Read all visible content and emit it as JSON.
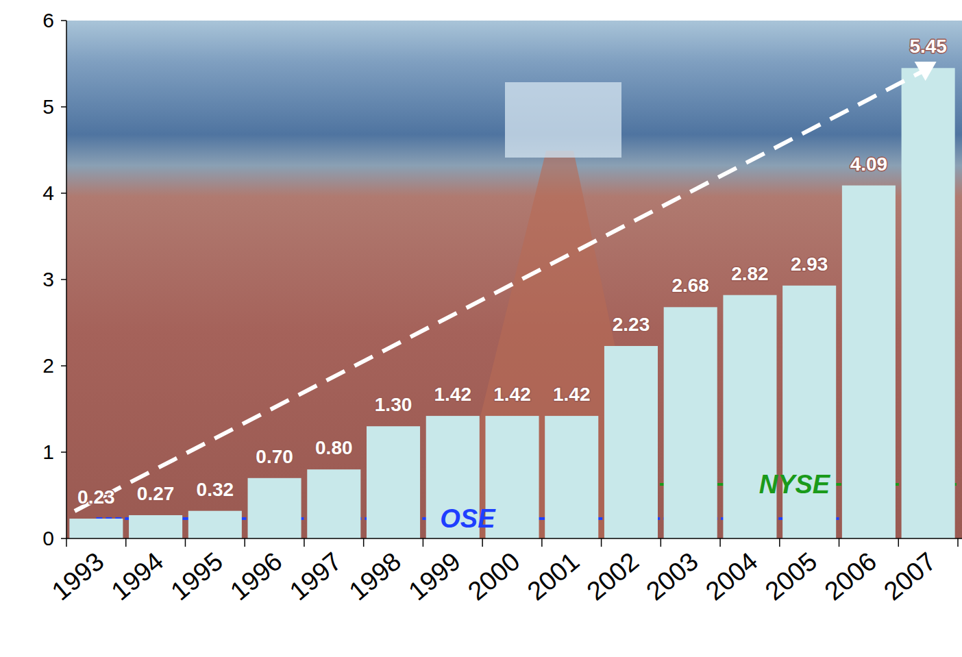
{
  "chart_data": {
    "type": "bar",
    "categories": [
      "1993",
      "1994",
      "1995",
      "1996",
      "1997",
      "1998",
      "1999",
      "2000",
      "2001",
      "2002",
      "2003",
      "2004",
      "2005",
      "2006",
      "2007"
    ],
    "values": [
      0.23,
      0.27,
      0.32,
      0.7,
      0.8,
      1.3,
      1.42,
      1.42,
      1.42,
      2.23,
      2.68,
      2.82,
      2.93,
      4.09,
      5.45
    ],
    "value_labels": [
      "0.23",
      "0.27",
      "0.32",
      "0.70",
      "0.80",
      "1.30",
      "1.42",
      "1.42",
      "1.42",
      "2.23",
      "2.68",
      "2.82",
      "2.93",
      "4.09",
      "5.45"
    ],
    "color": "#c8e8ea",
    "ylim": [
      0,
      6
    ],
    "yticks": [
      0,
      1,
      2,
      3,
      4,
      5,
      6
    ],
    "grid": false,
    "data_labels": true,
    "annotations": [
      {
        "text": "OSE",
        "color": "#1f3fff",
        "start": "1993",
        "end": "2005"
      },
      {
        "text": "NYSE",
        "color": "#1a9a1a",
        "start": "2002",
        "end": "2007"
      }
    ]
  }
}
